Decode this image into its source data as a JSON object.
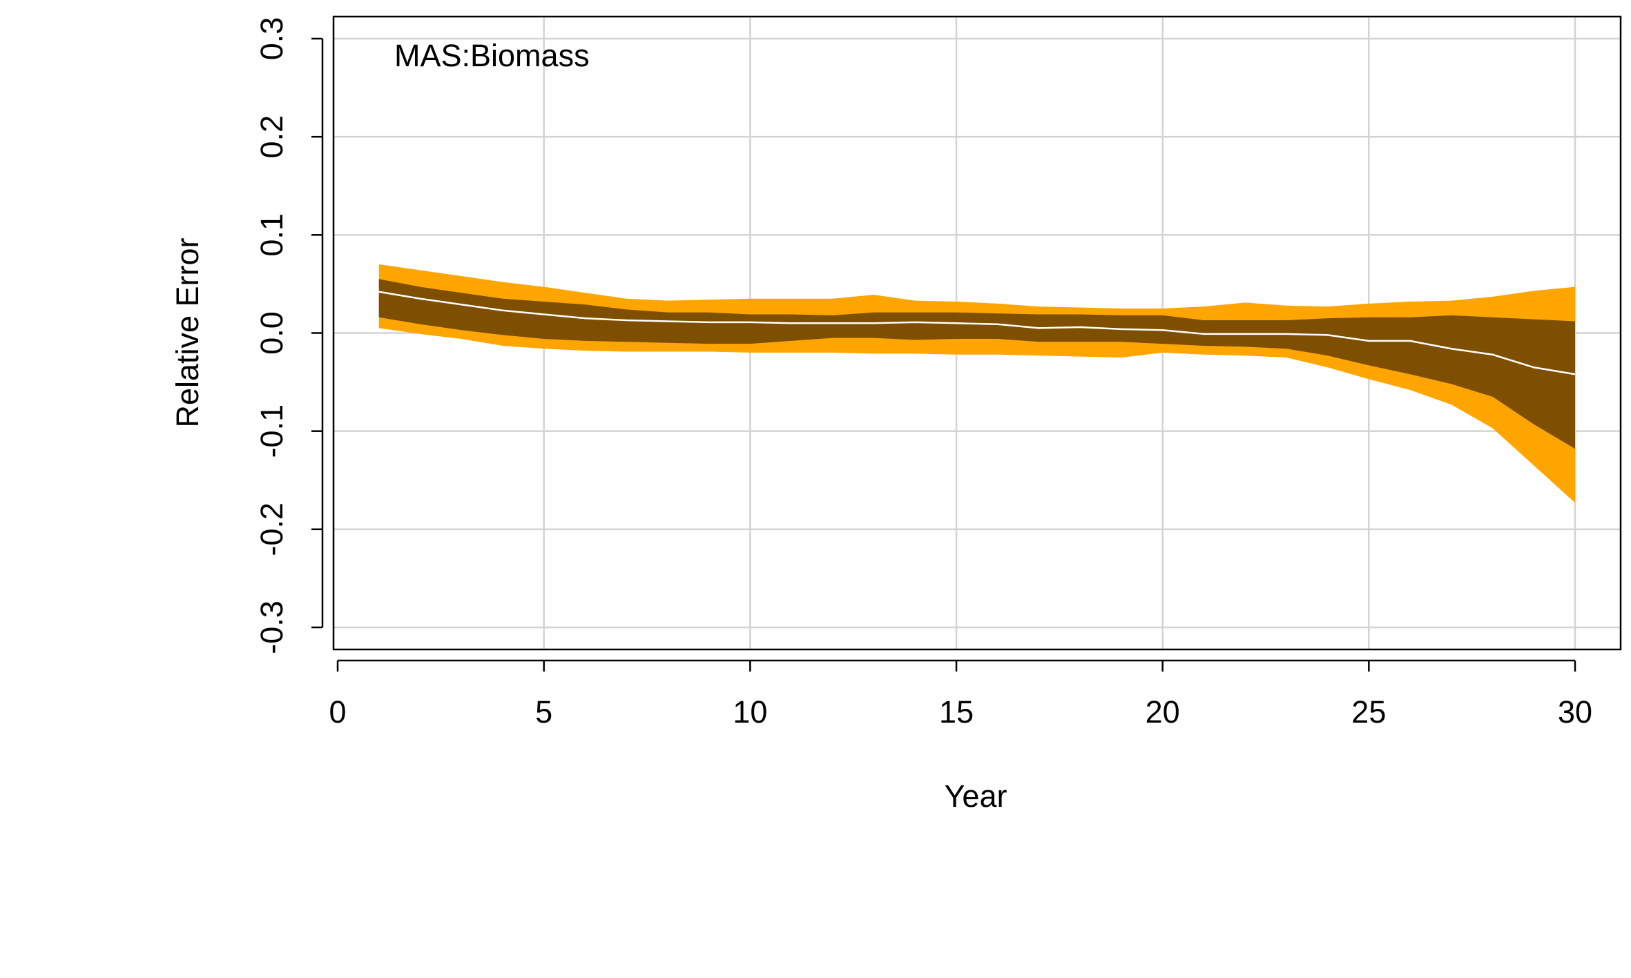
{
  "chart_data": {
    "type": "area",
    "title": "",
    "annotation": "MAS:Biomass",
    "xlabel": "Year",
    "ylabel": "Relative Error",
    "xlim": [
      0,
      30
    ],
    "ylim": [
      -0.3,
      0.3
    ],
    "x_ticks": [
      0,
      5,
      10,
      15,
      20,
      25,
      30
    ],
    "x_tick_labels": [
      "0",
      "5",
      "10",
      "15",
      "20",
      "25",
      "30"
    ],
    "y_ticks": [
      -0.3,
      -0.2,
      -0.1,
      0.0,
      0.1,
      0.2,
      0.3
    ],
    "y_tick_labels": [
      "-0.3",
      "-0.2",
      "-0.1",
      "0.0",
      "0.1",
      "0.2",
      "0.3"
    ],
    "grid": true,
    "colors": {
      "outer_band": "#FFA500",
      "inner_band": "#7F4F00",
      "median": "#FFFFFF",
      "grid": "#D3D3D3"
    },
    "x": [
      1,
      2,
      3,
      4,
      5,
      6,
      7,
      8,
      9,
      10,
      11,
      12,
      13,
      14,
      15,
      16,
      17,
      18,
      19,
      20,
      21,
      22,
      23,
      24,
      25,
      26,
      27,
      28,
      29,
      30
    ],
    "series": [
      {
        "role": "outer_upper",
        "values": [
          0.07,
          0.064,
          0.058,
          0.052,
          0.047,
          0.041,
          0.035,
          0.033,
          0.034,
          0.035,
          0.035,
          0.035,
          0.039,
          0.033,
          0.032,
          0.03,
          0.027,
          0.026,
          0.025,
          0.025,
          0.027,
          0.031,
          0.028,
          0.027,
          0.03,
          0.032,
          0.033,
          0.037,
          0.043,
          0.047
        ]
      },
      {
        "role": "inner_upper",
        "values": [
          0.055,
          0.047,
          0.041,
          0.035,
          0.032,
          0.029,
          0.024,
          0.021,
          0.021,
          0.019,
          0.019,
          0.018,
          0.021,
          0.021,
          0.021,
          0.02,
          0.019,
          0.019,
          0.018,
          0.018,
          0.013,
          0.013,
          0.013,
          0.015,
          0.016,
          0.016,
          0.018,
          0.016,
          0.014,
          0.012
        ]
      },
      {
        "role": "median",
        "values": [
          0.042,
          0.035,
          0.029,
          0.023,
          0.019,
          0.015,
          0.013,
          0.012,
          0.011,
          0.011,
          0.01,
          0.01,
          0.01,
          0.011,
          0.01,
          0.009,
          0.005,
          0.006,
          0.004,
          0.003,
          -0.001,
          -0.001,
          -0.001,
          -0.002,
          -0.008,
          -0.008,
          -0.016,
          -0.022,
          -0.035,
          -0.042
        ]
      },
      {
        "role": "inner_lower",
        "values": [
          0.016,
          0.009,
          0.003,
          -0.002,
          -0.006,
          -0.008,
          -0.009,
          -0.01,
          -0.011,
          -0.011,
          -0.008,
          -0.005,
          -0.005,
          -0.007,
          -0.006,
          -0.006,
          -0.009,
          -0.009,
          -0.009,
          -0.011,
          -0.013,
          -0.014,
          -0.016,
          -0.023,
          -0.033,
          -0.042,
          -0.052,
          -0.065,
          -0.093,
          -0.118
        ]
      },
      {
        "role": "outer_lower",
        "values": [
          0.005,
          -0.001,
          -0.006,
          -0.013,
          -0.016,
          -0.018,
          -0.019,
          -0.019,
          -0.019,
          -0.02,
          -0.02,
          -0.02,
          -0.021,
          -0.021,
          -0.022,
          -0.022,
          -0.023,
          -0.024,
          -0.025,
          -0.02,
          -0.022,
          -0.023,
          -0.025,
          -0.035,
          -0.047,
          -0.058,
          -0.073,
          -0.097,
          -0.135,
          -0.173
        ]
      }
    ]
  }
}
